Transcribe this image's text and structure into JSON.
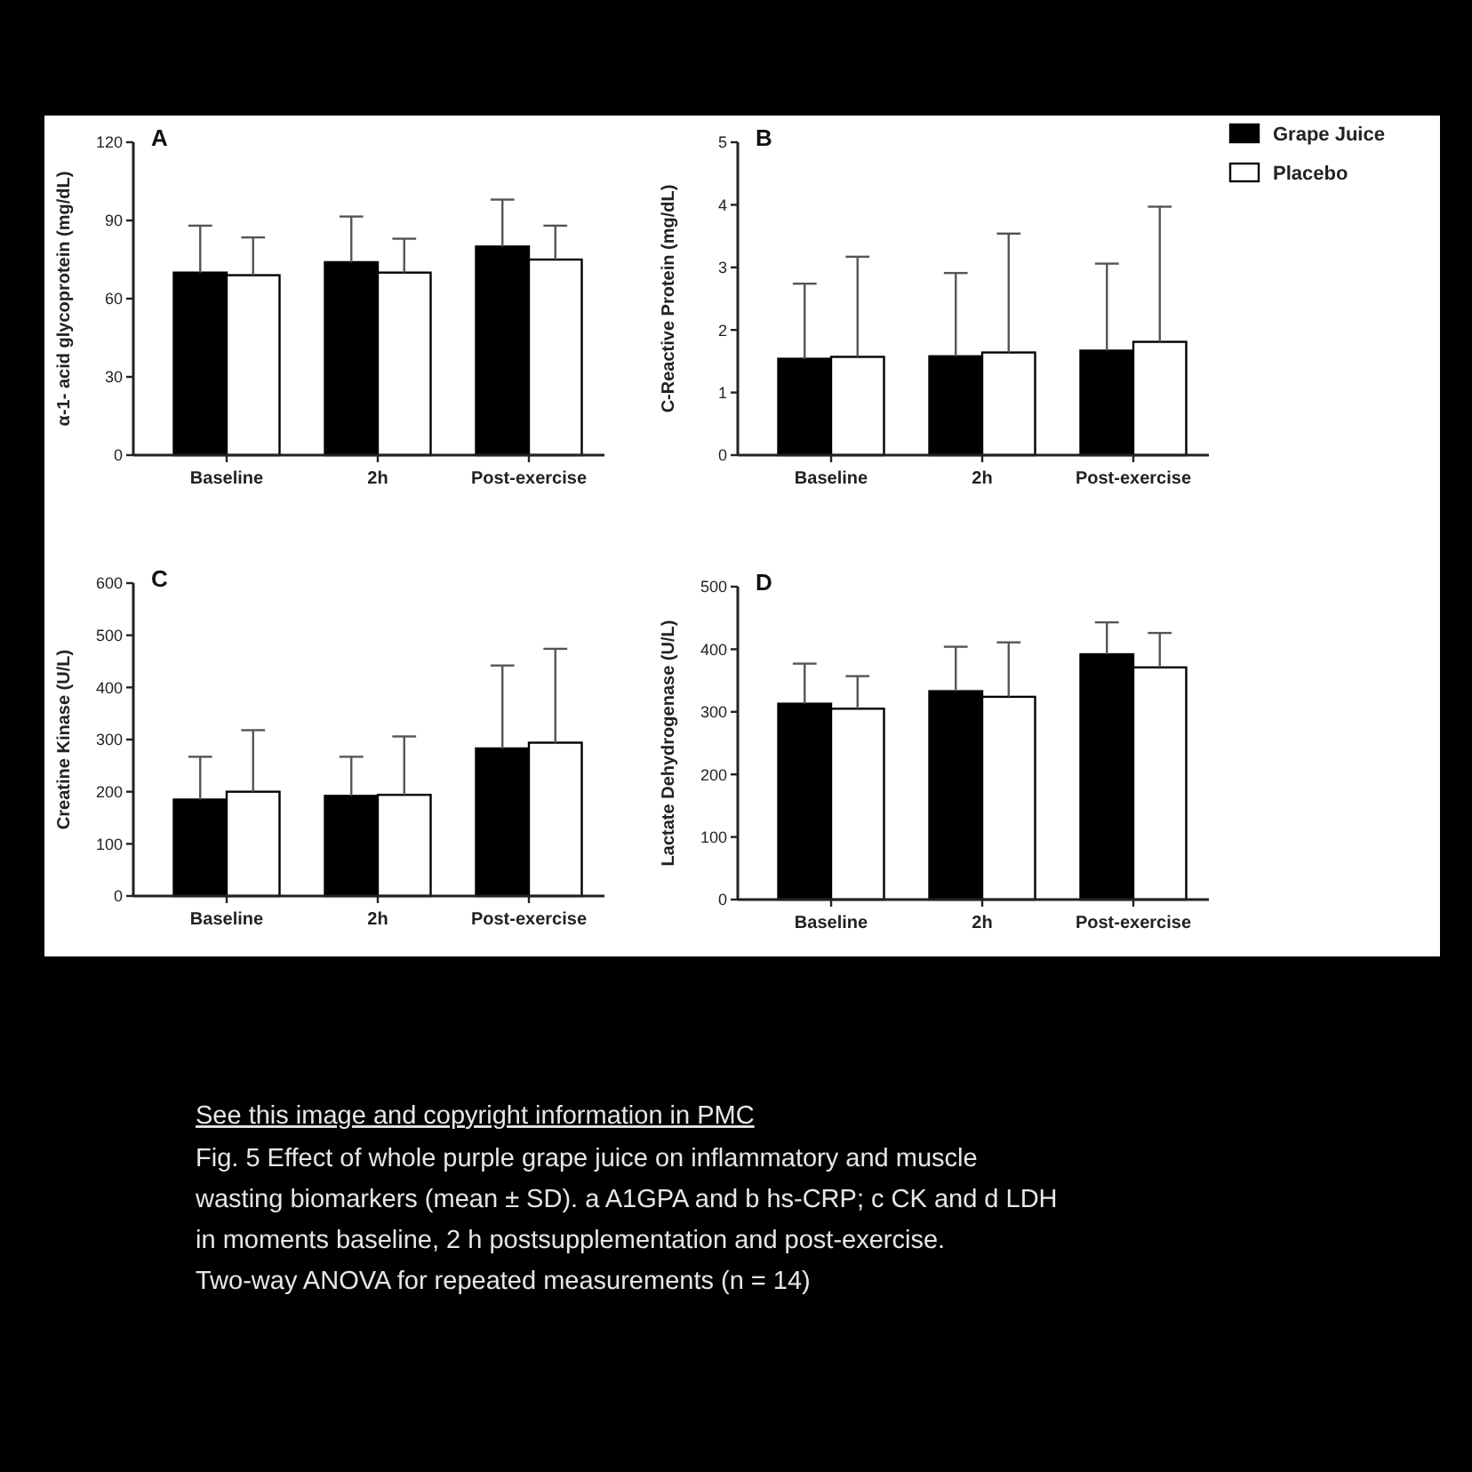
{
  "chart_data": [
    {
      "type": "bar",
      "title": "A",
      "ylabel": "α-1- acid glycoprotein (mg/dL)",
      "categories": [
        "Baseline",
        "2h",
        "Post-exercise"
      ],
      "ylim": [
        0,
        120
      ],
      "yticks": [
        0,
        30,
        60,
        90,
        120
      ],
      "grid": false,
      "legend": false,
      "series": [
        {
          "color": "#000000",
          "values": [
            70,
            74,
            80
          ],
          "errors": [
            [
              70,
              88
            ],
            [
              74,
              91.5
            ],
            [
              80,
              98
            ]
          ]
        },
        {
          "color": "#ffffff",
          "values": [
            69,
            70,
            75
          ],
          "errors": [
            [
              69,
              83.5
            ],
            [
              70,
              83
            ],
            [
              75,
              88
            ]
          ]
        }
      ]
    },
    {
      "type": "bar",
      "title": "B",
      "ylabel": "C-Reactive Protein (mg/dL)",
      "categories": [
        "Baseline",
        "2h",
        "Post-exercise"
      ],
      "ylim": [
        0,
        5
      ],
      "yticks": [
        0,
        1,
        2,
        3,
        4,
        5
      ],
      "grid": false,
      "legend": "top right",
      "series": [
        {
          "name": "Grape Juice",
          "color": "#000000",
          "values": [
            1.54,
            1.58,
            1.67
          ],
          "errors": [
            [
              1.54,
              2.74
            ],
            [
              1.58,
              2.91
            ],
            [
              1.67,
              3.06
            ]
          ]
        },
        {
          "name": "Placebo",
          "color": "#ffffff",
          "values": [
            1.57,
            1.64,
            1.81
          ],
          "errors": [
            [
              1.57,
              3.17
            ],
            [
              1.64,
              3.54
            ],
            [
              1.81,
              3.97
            ]
          ]
        }
      ]
    },
    {
      "type": "bar",
      "title": "C",
      "ylabel": "Creatine Kinase (U/L)",
      "categories": [
        "Baseline",
        "2h",
        "Post-exercise"
      ],
      "ylim": [
        0,
        600
      ],
      "yticks": [
        0,
        100,
        200,
        300,
        400,
        500,
        600
      ],
      "grid": false,
      "legend": false,
      "series": [
        {
          "color": "#000000",
          "values": [
            185,
            192,
            283
          ],
          "errors": [
            [
              185,
              267
            ],
            [
              192,
              267
            ],
            [
              283,
              442
            ]
          ]
        },
        {
          "color": "#ffffff",
          "values": [
            200,
            194,
            294
          ],
          "errors": [
            [
              200,
              318
            ],
            [
              194,
              306
            ],
            [
              294,
              474
            ]
          ]
        }
      ]
    },
    {
      "type": "bar",
      "title": "D",
      "ylabel": "Lactate Dehydrogenase (U/L)",
      "categories": [
        "Baseline",
        "2h",
        "Post-exercise"
      ],
      "ylim": [
        0,
        500
      ],
      "yticks": [
        0,
        100,
        200,
        300,
        400,
        500
      ],
      "grid": false,
      "legend": false,
      "annotations": [
        "See this image and copyright information in PMC",
        "Fig. 5 Effect of whole purple grape juice on inflammatory and muscle wasting biomarkers (mean ± SD). a A1GPA and b hs-CRP; c CK and d LDH in moments baseline, 2 h postsupplementation and post-exercise. Two-way ANOVA for repeated measurements (n = 14)"
      ],
      "series": [
        {
          "color": "#000000",
          "values": [
            313,
            333,
            392
          ],
          "errors": [
            [
              313,
              377
            ],
            [
              333,
              404
            ],
            [
              392,
              443
            ]
          ]
        },
        {
          "color": "#ffffff",
          "values": [
            305,
            324,
            371
          ],
          "errors": [
            [
              305,
              357
            ],
            [
              324,
              411
            ],
            [
              371,
              426
            ]
          ]
        }
      ]
    }
  ]
}
